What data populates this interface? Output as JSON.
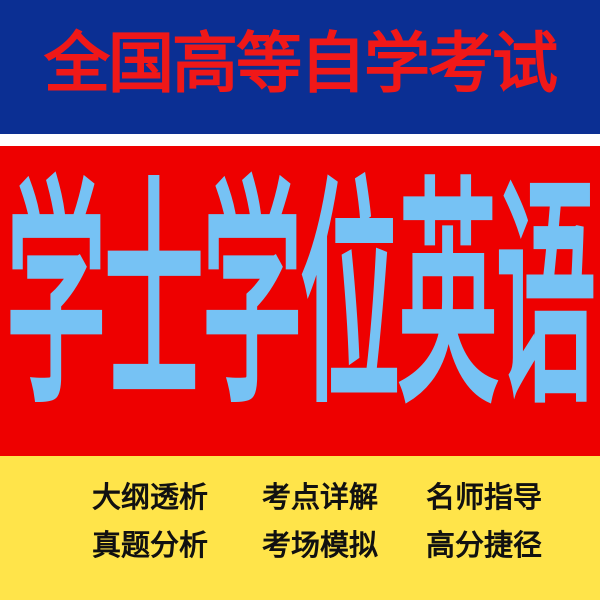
{
  "header": {
    "title": "全国高等自学考试"
  },
  "banner": {
    "title": "学士学位英语"
  },
  "features": [
    "大纲透析",
    "考点详解",
    "名师指导",
    "真题分析",
    "考场模拟",
    "高分捷径"
  ],
  "colors": {
    "top_band": "#0b2f93",
    "top_text": "#f01818",
    "mid_band": "#ee0000",
    "mid_text": "#76c2f4",
    "bottom_band": "#ffe44a",
    "bottom_text": "#111111"
  }
}
